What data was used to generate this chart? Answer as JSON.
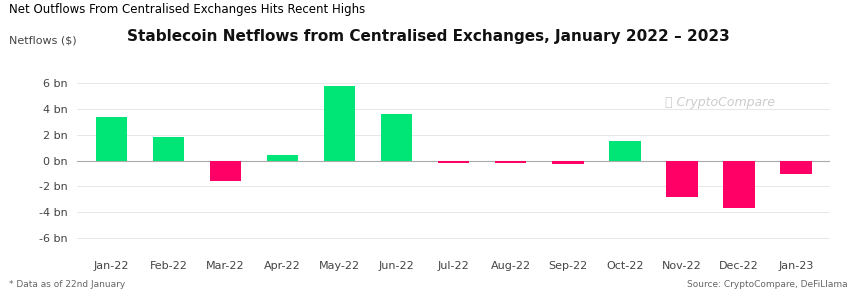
{
  "title": "Stablecoin Netflows from Centralised Exchanges, January 2022 – 2023",
  "supertitle": "Net Outflows From Centralised Exchanges Hits Recent Highs",
  "ylabel": "Netflows ($)",
  "categories": [
    "Jan-22",
    "Feb-22",
    "Mar-22",
    "Apr-22",
    "May-22",
    "Jun-22",
    "Jul-22",
    "Aug-22",
    "Sep-22",
    "Oct-22",
    "Nov-22",
    "Dec-22",
    "Jan-23"
  ],
  "values": [
    3.4,
    1.8,
    -1.6,
    0.4,
    5.8,
    3.6,
    -0.2,
    -0.15,
    -0.3,
    1.5,
    -2.8,
    -3.7,
    -1.0
  ],
  "positive_color": "#00e676",
  "negative_color": "#ff0066",
  "background_color": "#ffffff",
  "ylim": [
    -7,
    7
  ],
  "yticks": [
    -6,
    -4,
    -2,
    0,
    2,
    4,
    6
  ],
  "ytick_labels": [
    "-6 bn",
    "-4 bn",
    "-2 bn",
    "0 bn",
    "2 bn",
    "4 bn",
    "6 bn"
  ],
  "footnote": "* Data as of 22nd January",
  "source": "Source: CryptoCompare, DeFiLlama",
  "title_fontsize": 11,
  "supertitle_fontsize": 8.5,
  "tick_fontsize": 8,
  "watermark_color": "#cccccc",
  "supertitle_color": "#000000",
  "tick_color": "#444444"
}
